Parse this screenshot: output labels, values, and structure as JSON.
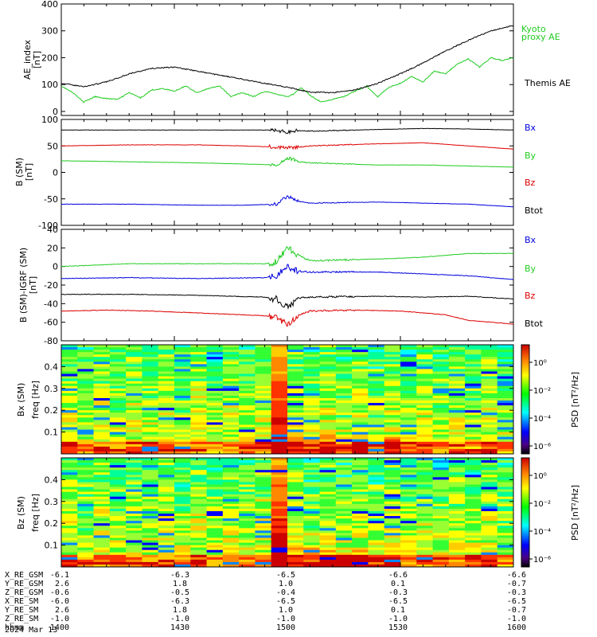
{
  "chart_data": [
    {
      "type": "line",
      "ylabel_1": "AE_index",
      "ylabel_2": "[nT]",
      "ylim": [
        -15,
        400
      ],
      "yticks": [
        "400",
        "300",
        "200",
        "100",
        "0"
      ],
      "series": [
        {
          "name": "Kyoto proxy AE",
          "legend": [
            "Kyoto",
            "proxy AE"
          ],
          "color": "#22cc22",
          "x": [
            1400,
            1405,
            1410,
            1415,
            1420,
            1425,
            1430,
            1435,
            1440,
            1445,
            1450,
            1455,
            1460,
            1465,
            1470,
            1475,
            1480,
            1485,
            1490,
            1495,
            1500,
            1503,
            1506,
            1510,
            1515,
            1520,
            1525,
            1530,
            1535,
            1540,
            1545,
            1550,
            1555,
            1560,
            1565,
            1570,
            1575,
            1580,
            1585,
            1590,
            1595,
            1600
          ],
          "values": [
            95,
            70,
            35,
            55,
            48,
            45,
            70,
            50,
            80,
            85,
            75,
            95,
            70,
            85,
            95,
            55,
            70,
            55,
            75,
            65,
            55,
            65,
            90,
            60,
            35,
            45,
            55,
            75,
            95,
            55,
            90,
            105,
            130,
            110,
            150,
            140,
            175,
            195,
            165,
            200,
            190,
            200
          ]
        },
        {
          "name": "Themis AE",
          "legend": [
            "Themis AE"
          ],
          "color": "#000000",
          "x": [
            1400,
            1410,
            1420,
            1430,
            1440,
            1450,
            1460,
            1470,
            1480,
            1490,
            1500,
            1510,
            1520,
            1530,
            1540,
            1550,
            1560,
            1570,
            1580,
            1590,
            1600
          ],
          "values": [
            105,
            92,
            110,
            140,
            160,
            165,
            150,
            135,
            120,
            105,
            90,
            72,
            70,
            80,
            105,
            140,
            180,
            225,
            265,
            300,
            320
          ]
        }
      ]
    },
    {
      "type": "line",
      "ylabel_1": "B (SM)",
      "ylabel_2": "[nT]",
      "ylim": [
        -100,
        100
      ],
      "yticks": [
        "100",
        "50",
        "0",
        "-50",
        "-100"
      ],
      "series": [
        {
          "name": "Bx",
          "color": "#000000",
          "x": [
            1400,
            1430,
            1460,
            1495,
            1500,
            1505,
            1510,
            1540,
            1560,
            1580,
            1600
          ],
          "values": [
            80,
            80,
            80,
            80,
            76,
            79,
            78,
            81,
            83,
            82,
            80
          ]
        },
        {
          "name": "By",
          "color": "#dd0000",
          "x": [
            1400,
            1430,
            1460,
            1480,
            1495,
            1500,
            1510,
            1540,
            1560,
            1580,
            1600
          ],
          "values": [
            50,
            52,
            52,
            50,
            48,
            46,
            50,
            54,
            56,
            50,
            44
          ]
        },
        {
          "name": "Bz",
          "color": "#22cc22",
          "x": [
            1400,
            1430,
            1460,
            1480,
            1495,
            1500,
            1505,
            1510,
            1540,
            1560,
            1580,
            1600
          ],
          "values": [
            22,
            20,
            18,
            16,
            14,
            28,
            20,
            18,
            14,
            14,
            12,
            10
          ]
        },
        {
          "name": "Btot",
          "color": "#0000dd",
          "x": [
            1400,
            1430,
            1460,
            1480,
            1495,
            1500,
            1505,
            1510,
            1540,
            1560,
            1580,
            1600
          ],
          "values": [
            -60,
            -60,
            -62,
            -62,
            -60,
            -45,
            -55,
            -58,
            -56,
            -58,
            -60,
            -65
          ]
        }
      ],
      "legend_colors": [
        "#0000dd",
        "#22cc22",
        "#dd0000",
        "#000000"
      ]
    },
    {
      "type": "line",
      "ylabel_1": "B (SM)-IGRF (SM)",
      "ylabel_2": "[nT]",
      "ylim": [
        -80,
        40
      ],
      "yticks": [
        "40",
        "20",
        "0",
        "-20",
        "-40",
        "-60",
        "-80"
      ],
      "series": [
        {
          "name": "Bx",
          "color": "#22cc22",
          "x": [
            1400,
            1430,
            1460,
            1490,
            1495,
            1500,
            1505,
            1510,
            1540,
            1560,
            1580,
            1600
          ],
          "values": [
            0,
            3,
            3,
            3,
            5,
            20,
            12,
            6,
            8,
            10,
            14,
            14
          ]
        },
        {
          "name": "By",
          "color": "#0000dd",
          "x": [
            1400,
            1430,
            1460,
            1490,
            1495,
            1500,
            1505,
            1510,
            1540,
            1560,
            1580,
            1600
          ],
          "values": [
            -13,
            -12,
            -13,
            -12,
            -10,
            0,
            -5,
            -6,
            -6,
            -8,
            -10,
            -14
          ]
        },
        {
          "name": "Bz",
          "color": "#000000",
          "x": [
            1400,
            1430,
            1460,
            1490,
            1495,
            1500,
            1505,
            1510,
            1540,
            1560,
            1580,
            1600
          ],
          "values": [
            -30,
            -30,
            -31,
            -33,
            -35,
            -44,
            -34,
            -33,
            -32,
            -33,
            -32,
            -35
          ]
        },
        {
          "name": "Btot",
          "color": "#dd0000",
          "x": [
            1400,
            1420,
            1440,
            1460,
            1480,
            1490,
            1495,
            1500,
            1505,
            1510,
            1530,
            1550,
            1570,
            1580,
            1600
          ],
          "values": [
            -48,
            -47,
            -48,
            -50,
            -52,
            -53,
            -55,
            -62,
            -52,
            -48,
            -47,
            -48,
            -52,
            -58,
            -62
          ]
        }
      ],
      "legend_colors": [
        "#0000dd",
        "#22cc22",
        "#dd0000",
        "#000000"
      ]
    },
    {
      "type": "heatmap",
      "ylabel_1": "Bx (SM)",
      "ylabel_2": "freq   [Hz]",
      "ylim": [
        0,
        0.5
      ],
      "yticks": [
        "0.4",
        "0.3",
        "0.2",
        "0.1"
      ],
      "colorbar_label": "PSD [nT²/Hz]",
      "colorbar_ticks": [
        "10⁰",
        "10⁻²",
        "10⁻⁴",
        "10⁻⁶"
      ]
    },
    {
      "type": "heatmap",
      "ylabel_1": "Bz (SM)",
      "ylabel_2": "freq   [Hz]",
      "ylim": [
        0,
        0.5
      ],
      "yticks": [
        "0.4",
        "0.3",
        "0.2",
        "0.1"
      ],
      "colorbar_label": "PSD [nT²/Hz]",
      "colorbar_ticks": [
        "10⁰",
        "10⁻²",
        "10⁻⁴",
        "10⁻⁶"
      ]
    }
  ],
  "ephemeris": {
    "rows": [
      {
        "label": "X_RE_GSM",
        "values": [
          "-6.1",
          "-6.3",
          "-6.5",
          "-6.6",
          "-6.6"
        ]
      },
      {
        "label": "Y_RE_GSM",
        "values": [
          "2.6",
          "1.8",
          "1.0",
          "0.1",
          "-0.7"
        ]
      },
      {
        "label": "Z_RE_GSM",
        "values": [
          "-0.6",
          "-0.5",
          "-0.4",
          "-0.3",
          "-0.3"
        ]
      },
      {
        "label": "X_RE_SM",
        "values": [
          "-6.0",
          "-6.3",
          "-6.5",
          "-6.5",
          "-6.5"
        ]
      },
      {
        "label": "Y_RE_SM",
        "values": [
          "2.6",
          "1.8",
          "1.0",
          "0.1",
          "-0.7"
        ]
      },
      {
        "label": "Z_RE_SM",
        "values": [
          "-1.0",
          "-1.0",
          "-1.0",
          "-1.0",
          "-1.0"
        ]
      },
      {
        "label": "hhmm",
        "values": [
          "1400",
          "1430",
          "1500",
          "1530",
          "1600"
        ]
      }
    ],
    "date": "2024 Mar 13"
  }
}
